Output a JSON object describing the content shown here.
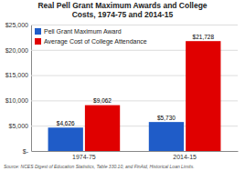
{
  "chart_data": {
    "type": "bar",
    "title": "Real Pell Grant Maximum Awards and College\nCosts, 1974-75 and 2014-15",
    "categories": [
      "1974-75",
      "2014-15"
    ],
    "series": [
      {
        "name": "Pell Grant Maximum Award",
        "color": "#1F5CC8",
        "values": [
          4626,
          5730
        ],
        "value_labels": [
          "$4,626",
          "$5,730"
        ]
      },
      {
        "name": "Average Cost of College Attendance",
        "color": "#E00000",
        "values": [
          9062,
          21728
        ],
        "value_labels": [
          "$9,062",
          "$21,728"
        ]
      }
    ],
    "ylim": [
      0,
      25000
    ],
    "yticks": [
      {
        "value": 0,
        "label": "$-"
      },
      {
        "value": 5000,
        "label": "$5,000"
      },
      {
        "value": 10000,
        "label": "$10,000"
      },
      {
        "value": 15000,
        "label": "$15,000"
      },
      {
        "value": 20000,
        "label": "$20,000"
      },
      {
        "value": 25000,
        "label": "$25,000"
      }
    ],
    "grid": true,
    "legend": "upper left",
    "data_labels": true,
    "annotations": [
      "Source: NCES Digest of Education Statistics, Table 330.10, and FinAid, Historical Loan Limits."
    ]
  }
}
